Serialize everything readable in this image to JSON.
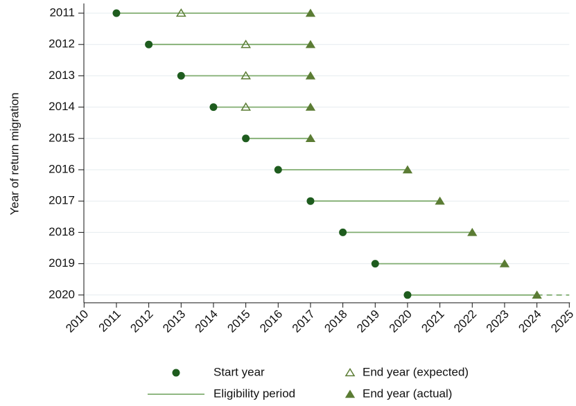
{
  "chart_data": {
    "type": "range",
    "y_label": "Year of return migration",
    "categories": [
      "2011",
      "2012",
      "2013",
      "2014",
      "2015",
      "2016",
      "2017",
      "2018",
      "2019",
      "2020"
    ],
    "xlim": [
      2010,
      2025
    ],
    "xticks": [
      2010,
      2011,
      2012,
      2013,
      2014,
      2015,
      2016,
      2017,
      2018,
      2019,
      2020,
      2021,
      2022,
      2023,
      2024,
      2025
    ],
    "grid": true,
    "series": [
      {
        "name": "Start year",
        "marker": "circle",
        "color": "#1e5c1e",
        "values": [
          2011,
          2012,
          2013,
          2014,
          2015,
          2016,
          2017,
          2018,
          2019,
          2020
        ]
      },
      {
        "name": "End year (expected)",
        "marker": "open-triangle",
        "color": "#5b7c34",
        "values": [
          2013,
          2015,
          2015,
          2015,
          null,
          null,
          null,
          null,
          null,
          null
        ]
      },
      {
        "name": "End year (actual)",
        "marker": "triangle",
        "color": "#5b7c34",
        "values": [
          2017,
          2017,
          2017,
          2017,
          2017,
          2020,
          2021,
          2022,
          2023,
          2024
        ]
      },
      {
        "name": "Eligibility period",
        "marker": "line",
        "color": "#80ad70",
        "extension_end": [
          null,
          null,
          null,
          null,
          null,
          null,
          null,
          null,
          null,
          2025
        ]
      }
    ]
  }
}
